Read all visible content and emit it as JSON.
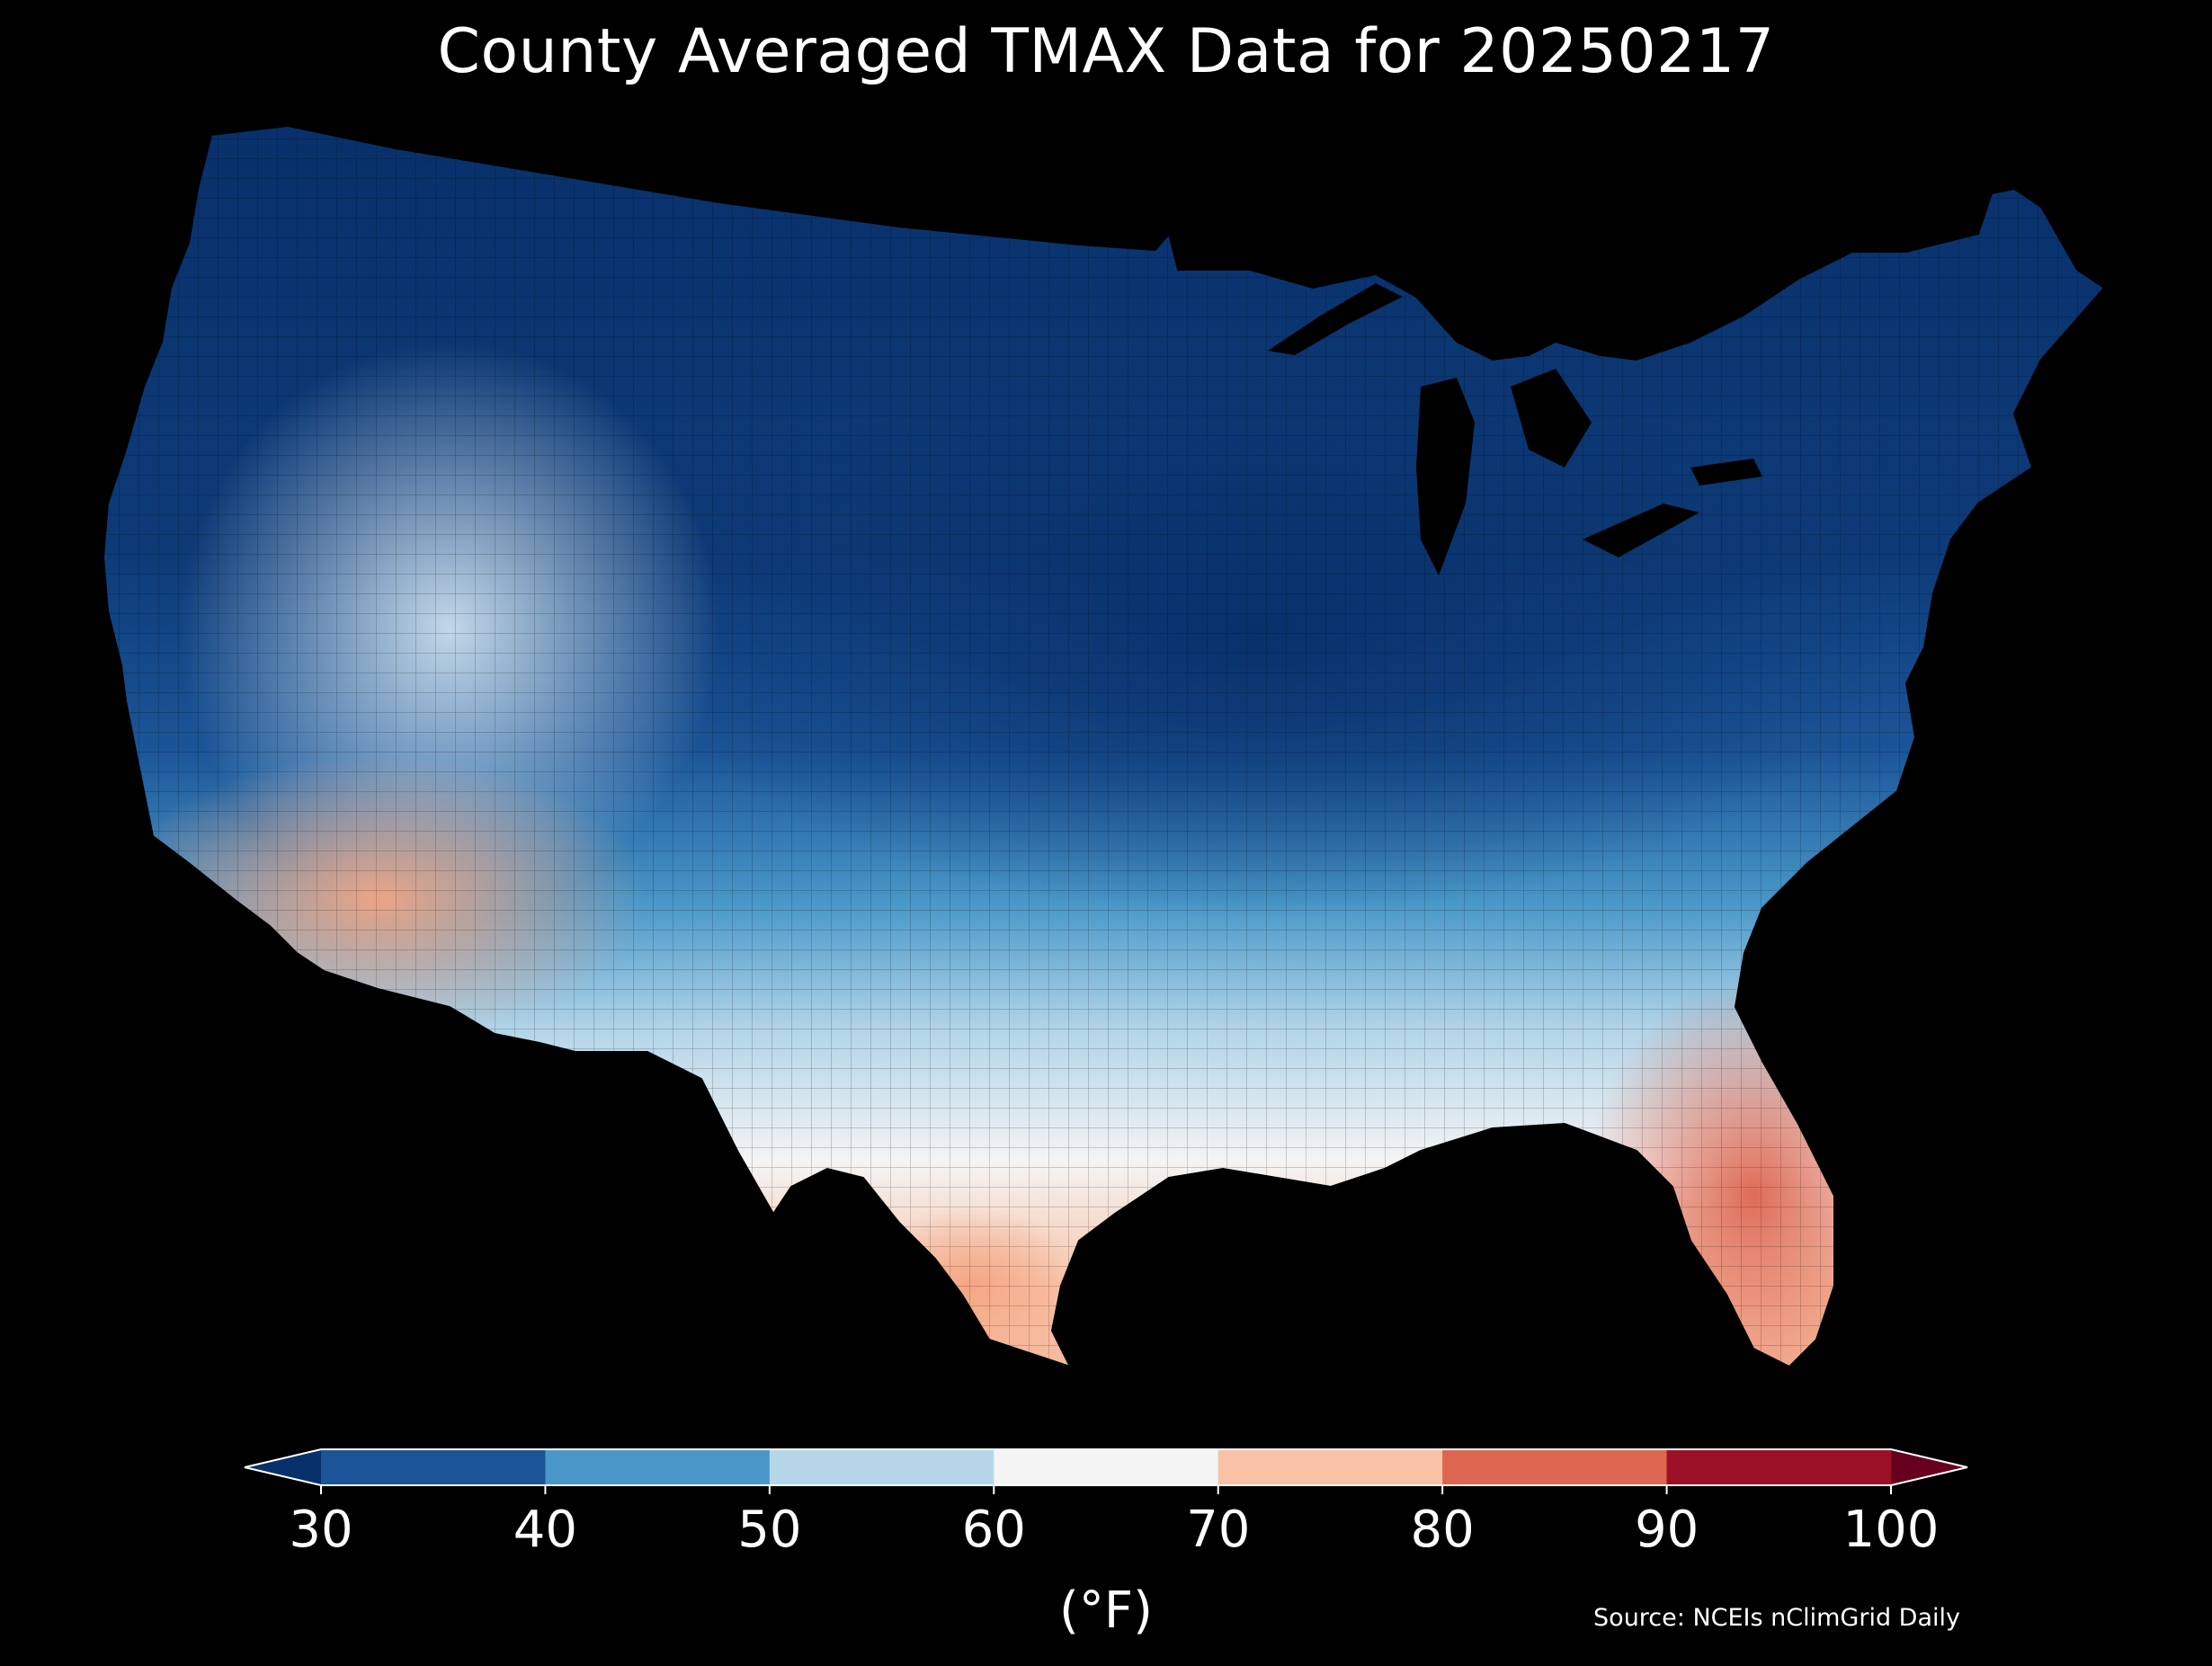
{
  "title": "County Averaged TMAX Data for 20250217",
  "colorbar": {
    "unit_label": "(°F)",
    "ticks": [
      "30",
      "40",
      "50",
      "60",
      "70",
      "80",
      "90",
      "100"
    ],
    "bins": [
      {
        "range": "<30",
        "color": "#08306b"
      },
      {
        "range": "30-40",
        "color": "#1b5597"
      },
      {
        "range": "40-50",
        "color": "#4a98c9"
      },
      {
        "range": "50-60",
        "color": "#b5d6e9"
      },
      {
        "range": "60-70",
        "color": "#f4f4f4"
      },
      {
        "range": "70-80",
        "color": "#f9c2a6"
      },
      {
        "range": "80-90",
        "color": "#dd6650"
      },
      {
        "range": "90-100",
        "color": "#9c1027"
      },
      {
        "range": ">100",
        "color": "#67001f"
      }
    ]
  },
  "source": "Source: NCEIs nClimGrid Daily",
  "map": {
    "region": "Contiguous United States",
    "variable": "TMAX",
    "date": "20250217",
    "background_color": "#000000"
  }
}
